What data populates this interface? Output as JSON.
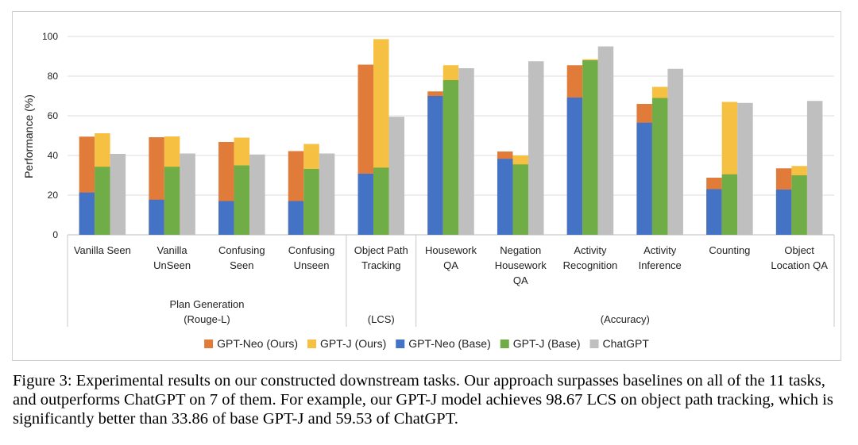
{
  "chart_data": {
    "type": "bar",
    "stacked_pairs": true,
    "ylabel": "Performance (%)",
    "ylim": [
      0,
      100
    ],
    "yticks": [
      0,
      20,
      40,
      60,
      80,
      100
    ],
    "grid": "horizontal",
    "legend_position": "bottom",
    "categories": [
      [
        "Vanilla Seen"
      ],
      [
        "Vanilla",
        "UnSeen"
      ],
      [
        "Confusing",
        "Seen"
      ],
      [
        "Confusing",
        "Unseen"
      ],
      [
        "Object Path",
        "Tracking"
      ],
      [
        "Housework",
        "QA"
      ],
      [
        "Negation",
        "Housework",
        "QA"
      ],
      [
        "Activity",
        "Recognition"
      ],
      [
        "Activity",
        "Inference"
      ],
      [
        "Counting"
      ],
      [
        "Object",
        "Location QA"
      ]
    ],
    "groups": [
      {
        "label": [
          "Plan Generation",
          "(Rouge-L)"
        ],
        "start": 0,
        "end": 3
      },
      {
        "label": [
          "(LCS)"
        ],
        "start": 4,
        "end": 4
      },
      {
        "label": [
          "(Accuracy)"
        ],
        "start": 5,
        "end": 10
      }
    ],
    "series": [
      {
        "name": "GPT-Neo (Ours)",
        "color": "#E07B39",
        "values": [
          49.5,
          49.2,
          46.8,
          42.2,
          85.8,
          72.3,
          42.0,
          85.5,
          66.0,
          28.8,
          33.5
        ]
      },
      {
        "name": "GPT-J (Ours)",
        "color": "#F6C142",
        "values": [
          51.2,
          49.6,
          49.0,
          45.8,
          98.67,
          85.5,
          40.0,
          88.5,
          74.6,
          67.0,
          34.7
        ]
      },
      {
        "name": "GPT-Neo (Base)",
        "color": "#4472C4",
        "values": [
          21.3,
          17.7,
          17.0,
          17.0,
          30.8,
          70.0,
          38.3,
          69.2,
          56.5,
          23.0,
          22.8
        ]
      },
      {
        "name": "GPT-J (Base)",
        "color": "#70AD47",
        "values": [
          34.3,
          34.3,
          35.0,
          33.2,
          33.86,
          78.0,
          35.5,
          88.0,
          69.0,
          30.5,
          30.0
        ]
      },
      {
        "name": "ChatGPT",
        "color": "#BFBFBF",
        "values": [
          40.8,
          41.0,
          40.5,
          41.0,
          59.53,
          84.0,
          87.5,
          95.0,
          83.7,
          66.5,
          67.5
        ]
      }
    ]
  },
  "caption": "Figure 3: Experimental results on our constructed downstream tasks. Our approach surpasses baselines on all of the 11 tasks, and outperforms ChatGPT on 7 of them. For example, our GPT-J model achieves 98.67 LCS on object path tracking, which is significantly better than 33.86 of base GPT-J and 59.53 of ChatGPT."
}
